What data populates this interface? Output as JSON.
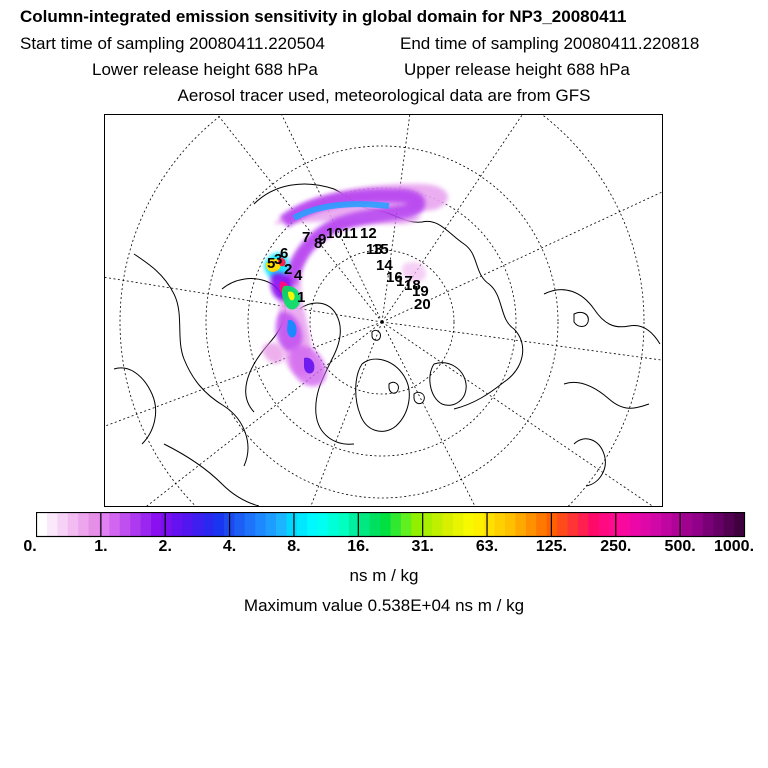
{
  "header": {
    "title": "Column-integrated emission sensitivity in global domain for NP3_20080411",
    "start_label": "Start time of sampling 20080411.220504",
    "end_label": "End time of sampling 20080411.220818",
    "lower_label": "Lower release height  688 hPa",
    "upper_label": "Upper release height  688 hPa",
    "tracer_label": "Aerosol tracer used, meteorological data are from GFS"
  },
  "chart_data": {
    "type": "heatmap",
    "projection": "north polar stereographic",
    "colorbar": {
      "tick_labels": [
        "0.",
        "1.",
        "2.",
        "4.",
        "8.",
        "16.",
        "31.",
        "63.",
        "125.",
        "250.",
        "500.",
        "1000."
      ],
      "segment_colors": [
        "#ffffff",
        "#fbe8fb",
        "#f7d2f7",
        "#f2bcf2",
        "#eda6ed",
        "#e68fe6",
        "#e080f2",
        "#d266f0",
        "#c04ff0",
        "#ae3af0",
        "#9b26f0",
        "#8a10f0",
        "#7a0ff0",
        "#6412f0",
        "#5216f0",
        "#3f1ef0",
        "#2a28f0",
        "#1a35f0",
        "#1c4af0",
        "#1d5ff5",
        "#1d73fa",
        "#1d88ff",
        "#1c9dff",
        "#1cb3ff",
        "#00d6ff",
        "#00e8ff",
        "#00f8ff",
        "#00fff0",
        "#00ffd8",
        "#00ffc0",
        "#00f0a0",
        "#00e880",
        "#00e060",
        "#00e040",
        "#30e830",
        "#60f020",
        "#90f000",
        "#a8f000",
        "#c0f000",
        "#d8f000",
        "#e8f400",
        "#f8f800",
        "#fff000",
        "#ffe000",
        "#ffd000",
        "#ffc000",
        "#ffa800",
        "#ff9000",
        "#ff7800",
        "#ff6000",
        "#ff4a1a",
        "#ff3434",
        "#ff2050",
        "#ff0a68",
        "#ff0a80",
        "#ff0a90",
        "#f80aa0",
        "#ec08a8",
        "#de08a8",
        "#d008a8",
        "#c006a0",
        "#b00498",
        "#a00290",
        "#900088",
        "#7a0078",
        "#660066",
        "#520052",
        "#400040"
      ],
      "unit": "ns m / kg"
    },
    "maximum_label": "Maximum value  0.538E+04 ns m / kg",
    "day_markers": [
      "1",
      "2",
      "3",
      "4",
      "5",
      "6",
      "7",
      "8",
      "9",
      "10",
      "11",
      "12",
      "13",
      "14",
      "15",
      "16",
      "17",
      "18",
      "19",
      "20"
    ]
  }
}
